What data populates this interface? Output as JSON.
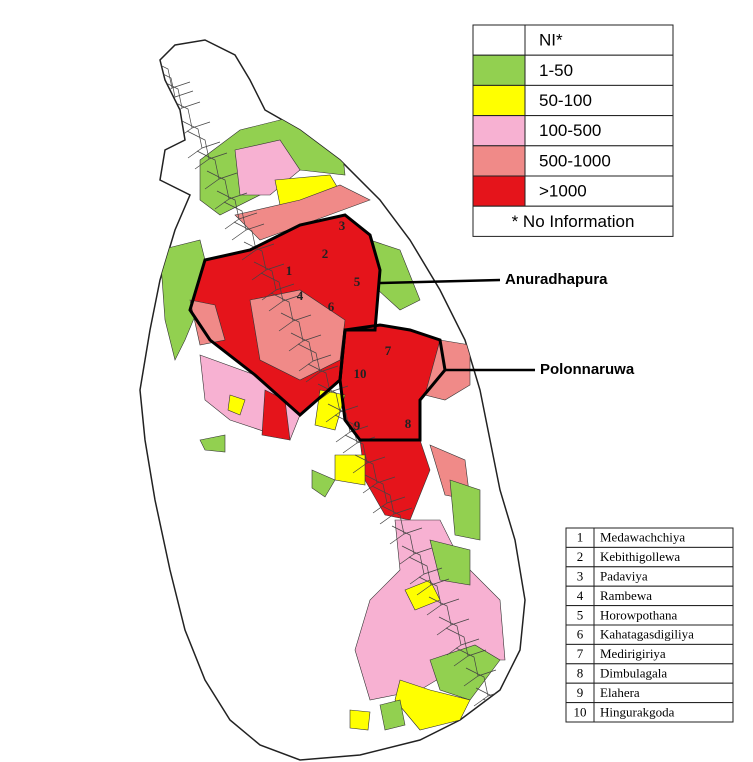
{
  "legend": {
    "items": [
      {
        "label": "NI*",
        "color": "#ffffff"
      },
      {
        "label": "1-50",
        "color": "#92d050"
      },
      {
        "label": "50-100",
        "color": "#ffff00"
      },
      {
        "label": "100-500",
        "color": "#f7b1d2"
      },
      {
        "label": "500-1000",
        "color": "#f08a88"
      },
      {
        "label": ">1000",
        "color": "#e5141b"
      }
    ],
    "note": "* No Information"
  },
  "callouts": [
    "Anuradhapura",
    "Polonnaruwa"
  ],
  "table": {
    "rows": [
      [
        "1",
        "Medawachchiya"
      ],
      [
        "2",
        "Kebithigollewa"
      ],
      [
        "3",
        "Padaviya"
      ],
      [
        "4",
        "Rambewa"
      ],
      [
        "5",
        "Horowpothana"
      ],
      [
        "6",
        "Kahatagasdigiliya"
      ],
      [
        "7",
        "Medirigiriya"
      ],
      [
        "8",
        "Dimbulagala"
      ],
      [
        "9",
        "Elahera"
      ],
      [
        "10",
        "Hingurakgoda"
      ]
    ]
  }
}
